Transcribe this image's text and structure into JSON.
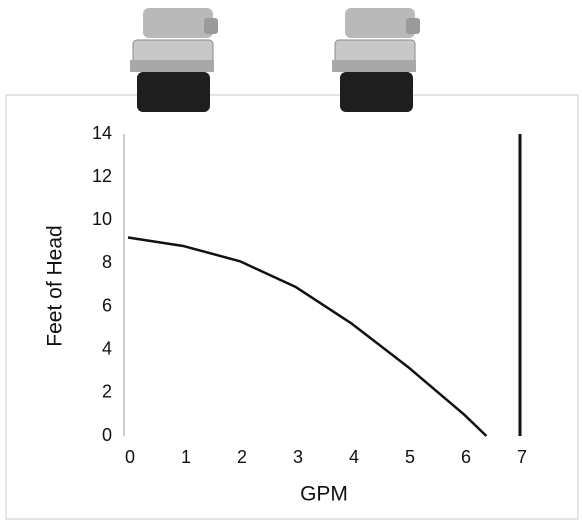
{
  "chart_data": {
    "type": "line",
    "x_label": "GPM",
    "y_label": "Feet of Head",
    "x": [
      0,
      1,
      2,
      3,
      4,
      5,
      6,
      6.4
    ],
    "values": [
      9.2,
      8.8,
      8.1,
      6.9,
      5.2,
      3.2,
      1.0,
      0
    ],
    "color": "#111111",
    "xlim": [
      0,
      7
    ],
    "xticks": [
      0,
      1,
      2,
      3,
      4,
      5,
      6,
      7
    ],
    "ylim": [
      0,
      14
    ],
    "yticks": [
      0,
      2,
      4,
      6,
      8,
      10,
      12,
      14
    ],
    "grid": false
  }
}
